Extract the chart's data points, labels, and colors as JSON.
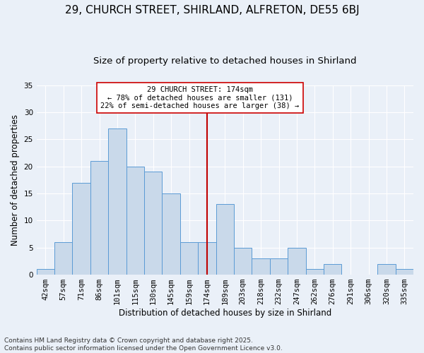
{
  "title": "29, CHURCH STREET, SHIRLAND, ALFRETON, DE55 6BJ",
  "subtitle": "Size of property relative to detached houses in Shirland",
  "xlabel": "Distribution of detached houses by size in Shirland",
  "ylabel": "Number of detached properties",
  "bar_labels": [
    "42sqm",
    "57sqm",
    "71sqm",
    "86sqm",
    "101sqm",
    "115sqm",
    "130sqm",
    "145sqm",
    "159sqm",
    "174sqm",
    "189sqm",
    "203sqm",
    "218sqm",
    "232sqm",
    "247sqm",
    "262sqm",
    "276sqm",
    "291sqm",
    "306sqm",
    "320sqm",
    "335sqm"
  ],
  "bar_heights": [
    1,
    6,
    17,
    21,
    27,
    20,
    19,
    15,
    6,
    6,
    13,
    5,
    3,
    3,
    5,
    1,
    2,
    0,
    0,
    2,
    1
  ],
  "bar_color": "#c9d9ea",
  "bar_edge_color": "#5b9bd5",
  "highlight_index": 9,
  "highlight_color": "#c00000",
  "annotation_text": "29 CHURCH STREET: 174sqm\n← 78% of detached houses are smaller (131)\n22% of semi-detached houses are larger (38) →",
  "annotation_box_color": "#ffffff",
  "annotation_box_edge_color": "#cc0000",
  "ylim": [
    0,
    35
  ],
  "yticks": [
    0,
    5,
    10,
    15,
    20,
    25,
    30,
    35
  ],
  "footer": "Contains HM Land Registry data © Crown copyright and database right 2025.\nContains public sector information licensed under the Open Government Licence v3.0.",
  "bg_color": "#eaf0f8",
  "grid_color": "#ffffff",
  "title_fontsize": 11,
  "subtitle_fontsize": 9.5,
  "axis_label_fontsize": 8.5,
  "tick_fontsize": 7.5,
  "annotation_fontsize": 7.5,
  "footer_fontsize": 6.5
}
